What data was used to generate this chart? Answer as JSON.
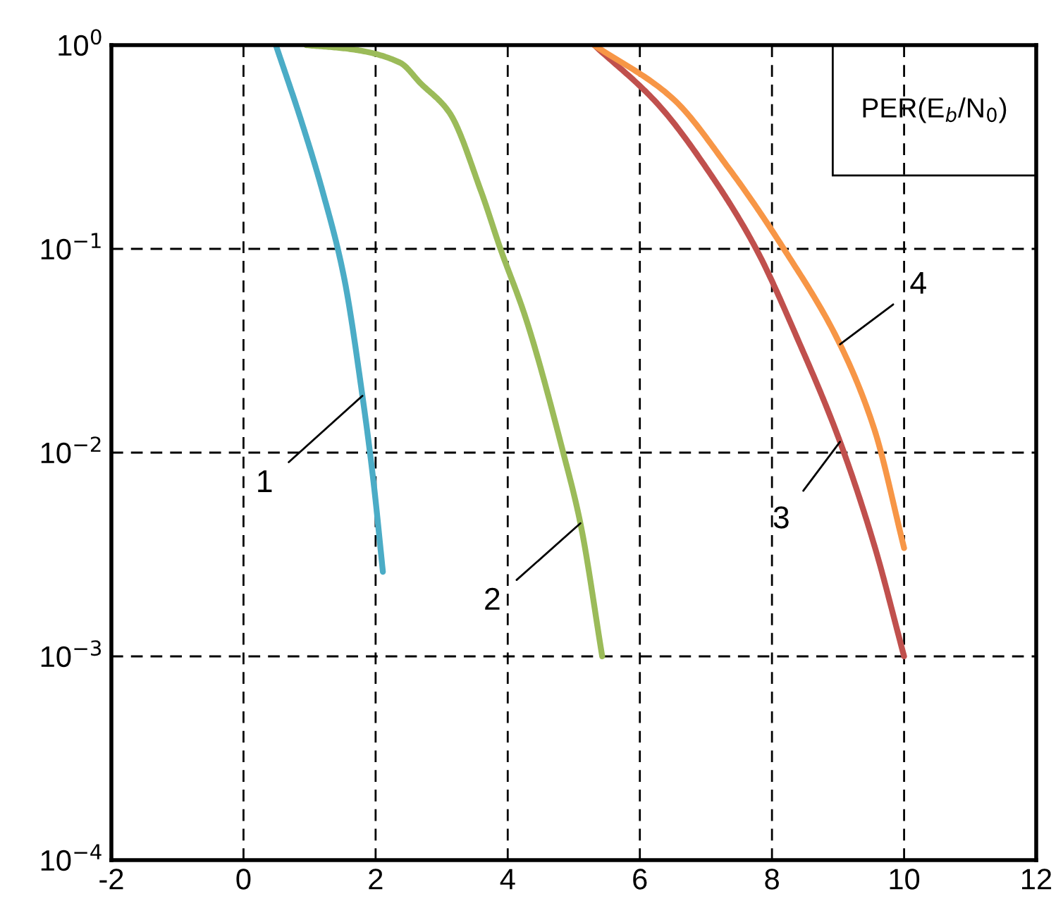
{
  "chart_data": {
    "type": "line",
    "log": "y",
    "grid": true,
    "line_style": "solid",
    "marker": "none",
    "xlim": [
      -2,
      12
    ],
    "xticks": [
      -2,
      0,
      2,
      4,
      6,
      8,
      10,
      12
    ],
    "ylim": [
      0.0001,
      1
    ],
    "yticks": [
      {
        "value": 0.0001,
        "label": "10$^{−4}$"
      },
      {
        "value": 0.001,
        "label": "10$^{−3}$"
      },
      {
        "value": 0.01,
        "label": "10$^{−2}$"
      },
      {
        "value": 0.1,
        "label": "10$^{−1}$"
      },
      {
        "value": 1,
        "label": "10$^{0}$"
      }
    ],
    "series": [
      {
        "color": "#4bacc6",
        "x": [
          0.49,
          0.89,
          1.2,
          1.52,
          1.8,
          1.97,
          2.11
        ],
        "values": [
          1,
          0.41,
          0.19,
          0.073,
          0.019,
          0.0071,
          0.0026
        ]
      },
      {
        "color": "#9bbb59",
        "x": [
          0.95,
          1.63,
          2.37,
          2.68,
          3.11,
          3.6,
          3.89,
          4.27,
          4.84,
          5.1,
          5.43
        ],
        "values": [
          1,
          0.955,
          0.82,
          0.65,
          0.47,
          0.19,
          0.1,
          0.046,
          0.01,
          0.0045,
          0.001
        ]
      },
      {
        "color": "#c0504d",
        "x": [
          5.31,
          6.28,
          7.12,
          7.76,
          8.39,
          9.03,
          9.55,
          10
        ],
        "values": [
          1,
          0.51,
          0.22,
          0.1,
          0.036,
          0.0113,
          0.0035,
          0.001
        ]
      },
      {
        "color": "#f79646",
        "x": [
          5.31,
          6.49,
          7.34,
          8.18,
          9.03,
          9.55,
          10
        ],
        "values": [
          1,
          0.55,
          0.25,
          0.1,
          0.034,
          0.013,
          0.0034
        ]
      }
    ],
    "annotations": [
      {
        "text": "1",
        "x": 1.8,
        "y": 0.019
      },
      {
        "text": "2",
        "x": 5.1,
        "y": 0.0045
      },
      {
        "text": "3",
        "x": 9.03,
        "y": 0.0113
      },
      {
        "text": "4",
        "x": 9.03,
        "y": 0.034
      },
      "PER(E$_{b}$/N$_{0}$)"
    ]
  }
}
